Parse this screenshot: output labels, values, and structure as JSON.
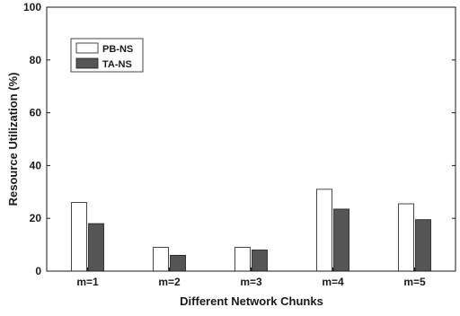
{
  "chart_data": {
    "type": "bar",
    "xlabel": "Different Network Chunks",
    "ylabel": "Resource Utilization (%)",
    "ylim": [
      0,
      100
    ],
    "yticks": [
      0,
      20,
      40,
      60,
      80,
      100
    ],
    "categories": [
      "m=1",
      "m=2",
      "m=3",
      "m=4",
      "m=5"
    ],
    "series": [
      {
        "name": "PB-NS",
        "values": [
          26,
          9,
          9,
          31,
          25.5
        ],
        "color": "#ffffff"
      },
      {
        "name": "TA-NS",
        "values": [
          18,
          6,
          8,
          23.5,
          19.5
        ],
        "color": "#555555"
      }
    ],
    "grid": false,
    "legend_position": "top-left"
  }
}
